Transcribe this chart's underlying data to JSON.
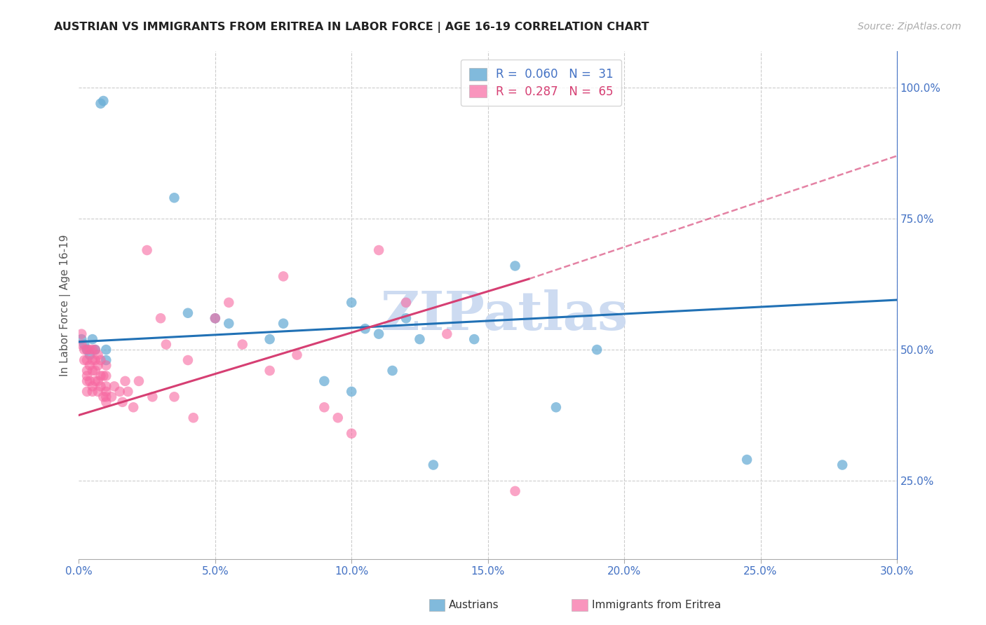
{
  "title": "AUSTRIAN VS IMMIGRANTS FROM ERITREA IN LABOR FORCE | AGE 16-19 CORRELATION CHART",
  "source": "Source: ZipAtlas.com",
  "ylabel": "In Labor Force | Age 16-19",
  "xlabel_ticks": [
    "0.0%",
    "5.0%",
    "10.0%",
    "15.0%",
    "20.0%",
    "25.0%",
    "30.0%"
  ],
  "xlabel_vals": [
    0.0,
    0.05,
    0.1,
    0.15,
    0.2,
    0.25,
    0.3
  ],
  "ylabel_ticks": [
    "25.0%",
    "50.0%",
    "75.0%",
    "100.0%"
  ],
  "ylabel_vals": [
    0.25,
    0.5,
    0.75,
    1.0
  ],
  "xlim": [
    0.0,
    0.3
  ],
  "ylim": [
    0.1,
    1.07
  ],
  "legend_austrians": "Austrians",
  "legend_eritrea": "Immigrants from Eritrea",
  "R_austrians": "0.060",
  "N_austrians": "31",
  "R_eritrea": "0.287",
  "N_eritrea": "65",
  "color_austrians": "#6baed6",
  "color_eritrea": "#f768a1",
  "color_trendline_austrians": "#2171b5",
  "color_trendline_eritrea": "#d63f73",
  "watermark": "ZIPatlas",
  "watermark_color": "#c8d8f0",
  "austrians_x": [
    0.001,
    0.002,
    0.003,
    0.004,
    0.005,
    0.006,
    0.008,
    0.009,
    0.01,
    0.01,
    0.035,
    0.04,
    0.05,
    0.055,
    0.07,
    0.075,
    0.09,
    0.1,
    0.1,
    0.105,
    0.11,
    0.115,
    0.12,
    0.125,
    0.13,
    0.145,
    0.16,
    0.175,
    0.19,
    0.245,
    0.28
  ],
  "austrians_y": [
    0.52,
    0.51,
    0.5,
    0.49,
    0.52,
    0.5,
    0.97,
    0.975,
    0.48,
    0.5,
    0.79,
    0.57,
    0.56,
    0.55,
    0.52,
    0.55,
    0.44,
    0.59,
    0.42,
    0.54,
    0.53,
    0.46,
    0.56,
    0.52,
    0.28,
    0.52,
    0.66,
    0.39,
    0.5,
    0.29,
    0.28
  ],
  "eritrea_x": [
    0.001,
    0.001,
    0.002,
    0.002,
    0.003,
    0.003,
    0.003,
    0.003,
    0.003,
    0.003,
    0.004,
    0.004,
    0.004,
    0.005,
    0.005,
    0.005,
    0.005,
    0.005,
    0.006,
    0.006,
    0.006,
    0.006,
    0.007,
    0.007,
    0.007,
    0.007,
    0.008,
    0.008,
    0.008,
    0.009,
    0.009,
    0.01,
    0.01,
    0.01,
    0.01,
    0.01,
    0.01,
    0.012,
    0.013,
    0.015,
    0.016,
    0.017,
    0.018,
    0.02,
    0.022,
    0.025,
    0.027,
    0.03,
    0.032,
    0.035,
    0.04,
    0.042,
    0.05,
    0.055,
    0.06,
    0.07,
    0.075,
    0.08,
    0.09,
    0.095,
    0.1,
    0.11,
    0.12,
    0.135,
    0.16
  ],
  "eritrea_y": [
    0.51,
    0.53,
    0.48,
    0.5,
    0.44,
    0.46,
    0.48,
    0.5,
    0.42,
    0.45,
    0.44,
    0.47,
    0.5,
    0.43,
    0.46,
    0.48,
    0.5,
    0.42,
    0.44,
    0.46,
    0.48,
    0.5,
    0.42,
    0.44,
    0.47,
    0.49,
    0.43,
    0.45,
    0.48,
    0.41,
    0.45,
    0.41,
    0.43,
    0.45,
    0.47,
    0.4,
    0.42,
    0.41,
    0.43,
    0.42,
    0.4,
    0.44,
    0.42,
    0.39,
    0.44,
    0.69,
    0.41,
    0.56,
    0.51,
    0.41,
    0.48,
    0.37,
    0.56,
    0.59,
    0.51,
    0.46,
    0.64,
    0.49,
    0.39,
    0.37,
    0.34,
    0.69,
    0.59,
    0.53,
    0.23
  ],
  "trendline_austrians_x0": 0.0,
  "trendline_austrians_x1": 0.3,
  "trendline_austrians_y0": 0.515,
  "trendline_austrians_y1": 0.595,
  "trendline_eritrea_x0": 0.0,
  "trendline_eritrea_xsolid": 0.165,
  "trendline_eritrea_x1": 0.3,
  "trendline_eritrea_y0": 0.375,
  "trendline_eritrea_ysolid": 0.635,
  "trendline_eritrea_y1": 0.87
}
